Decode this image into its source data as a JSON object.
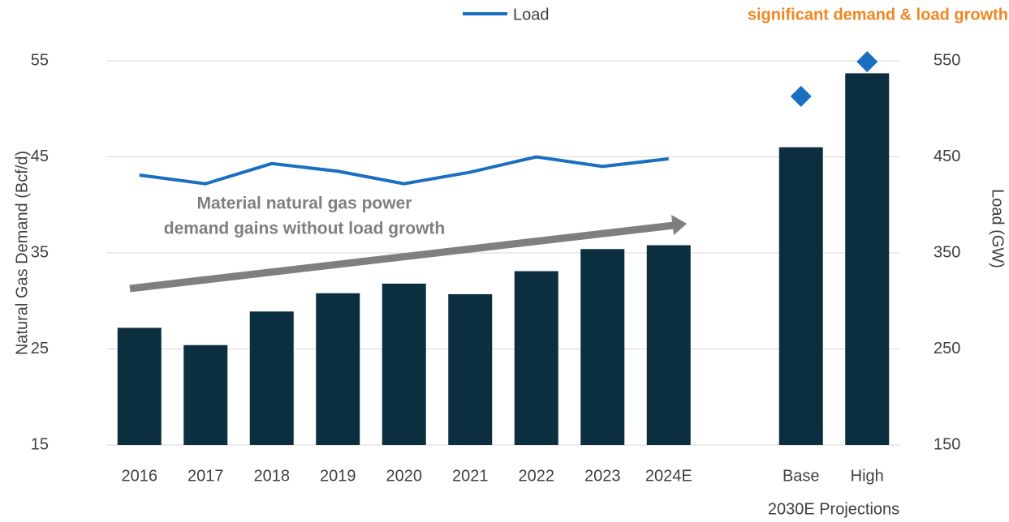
{
  "chart_data": {
    "type": "bar",
    "y_label": "Natural Gas Demand (Bcf/d)",
    "y2_label": "Load (GW)",
    "categories": [
      "2016",
      "2017",
      "2018",
      "2019",
      "2020",
      "2021",
      "2022",
      "2023",
      "2024E",
      null,
      "Base",
      "High"
    ],
    "group_label": "2030E Projections",
    "bar_color": "#0b2f3e",
    "values": [
      27.2,
      25.4,
      28.9,
      30.8,
      31.8,
      30.7,
      33.1,
      35.4,
      35.8,
      null,
      46.0,
      53.7
    ],
    "series": [
      {
        "name": "Load",
        "type": "line",
        "axis": "y2",
        "color": "#1a6fc0",
        "values": [
          431,
          422,
          443,
          435,
          422,
          434,
          450,
          440,
          448,
          null,
          null,
          null
        ]
      },
      {
        "type": "scatter",
        "marker": "diamond",
        "axis": "y2",
        "color": "#1a6fc0",
        "values": [
          null,
          null,
          null,
          null,
          null,
          null,
          null,
          null,
          null,
          null,
          513,
          549
        ]
      }
    ],
    "ylim": [
      15,
      55
    ],
    "yticks": [
      15,
      25,
      35,
      45,
      55
    ],
    "y2lim": [
      150,
      550
    ],
    "y2ticks": [
      150,
      250,
      350,
      450,
      550
    ],
    "grid": true,
    "annotations": {
      "trend": [
        "Material natural gas power",
        "demand gains without load growth"
      ],
      "header": "significant demand & load growth"
    }
  }
}
